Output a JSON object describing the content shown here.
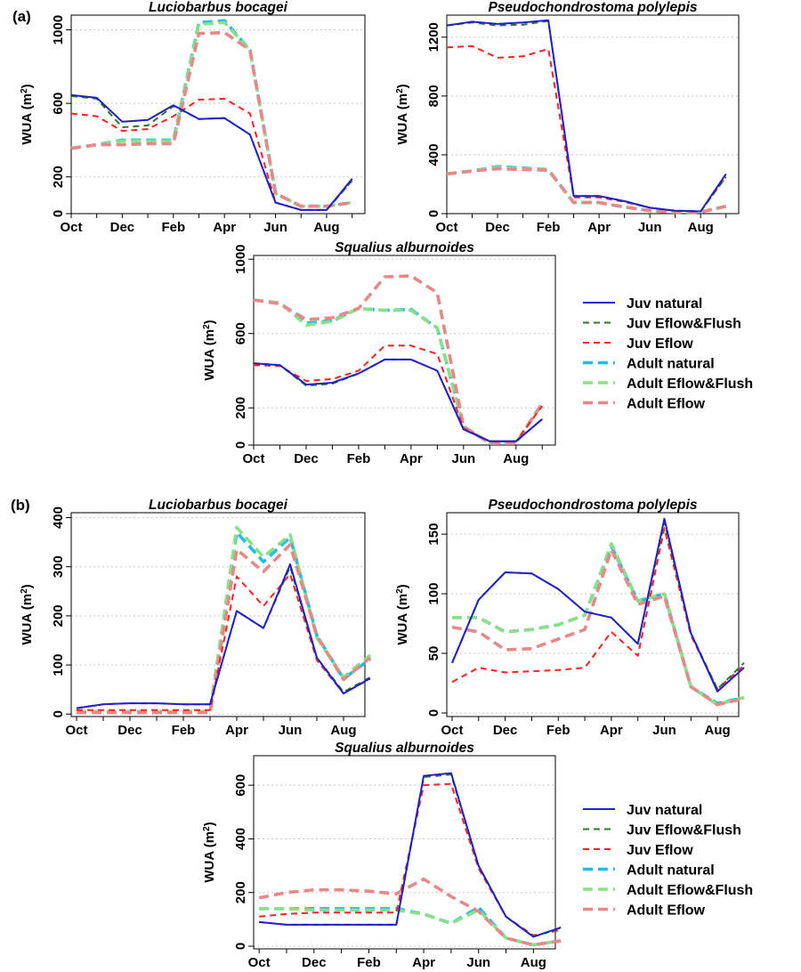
{
  "chart_data": [
    {
      "panel_label": "(a)",
      "type": "line",
      "title": "Luciobarbus bocagei",
      "ylabel": "WUA (m2)",
      "ylim": [
        0,
        1080
      ],
      "yticks": [
        0,
        200,
        600,
        1000
      ],
      "xlim": [
        0,
        11.5
      ],
      "xticks": [
        {
          "x": 0,
          "label": "Oct"
        },
        {
          "x": 2,
          "label": "Dec"
        },
        {
          "x": 4,
          "label": "Feb"
        },
        {
          "x": 6,
          "label": "Apr"
        },
        {
          "x": 8,
          "label": "Jun"
        },
        {
          "x": 10,
          "label": "Aug"
        }
      ],
      "grid": "horizontal-dotted",
      "x": [
        0,
        1,
        2,
        3,
        4,
        5,
        6,
        7,
        8,
        9,
        10,
        11
      ],
      "series": [
        {
          "name": "Juv natural",
          "color": "#1f1fcc",
          "style": "solid",
          "values": [
            645,
            630,
            500,
            510,
            590,
            515,
            520,
            430,
            60,
            20,
            20,
            190
          ]
        },
        {
          "name": "Juv Eflow&Flush",
          "color": "#2a7a2a",
          "style": "dash",
          "values": [
            640,
            625,
            470,
            480,
            585,
            515,
            520,
            430,
            60,
            20,
            20,
            180
          ]
        },
        {
          "name": "Juv Eflow",
          "color": "#ff2020",
          "style": "dash",
          "values": [
            545,
            530,
            450,
            460,
            530,
            620,
            625,
            545,
            60,
            20,
            20,
            180
          ]
        },
        {
          "name": "Adult natural",
          "color": "#22bbee",
          "style": "longdash",
          "values": [
            355,
            375,
            400,
            400,
            400,
            1040,
            1050,
            890,
            110,
            40,
            40,
            60
          ]
        },
        {
          "name": "Adult Eflow&Flush",
          "color": "#88e088",
          "style": "longdash",
          "values": [
            355,
            375,
            395,
            395,
            395,
            1030,
            1040,
            890,
            110,
            40,
            40,
            60
          ]
        },
        {
          "name": "Adult Eflow",
          "color": "#e88888",
          "style": "longdash",
          "values": [
            355,
            375,
            375,
            380,
            380,
            980,
            985,
            890,
            110,
            40,
            40,
            60
          ]
        }
      ]
    },
    {
      "panel_label": "",
      "type": "line",
      "title": "Pseudochondrostoma polylepis",
      "ylabel": "WUA (m2)",
      "ylim": [
        0,
        1350
      ],
      "yticks": [
        0,
        400,
        800,
        1200
      ],
      "xlim": [
        0,
        11.5
      ],
      "xticks": [
        {
          "x": 0,
          "label": "Oct"
        },
        {
          "x": 2,
          "label": "Dec"
        },
        {
          "x": 4,
          "label": "Feb"
        },
        {
          "x": 6,
          "label": "Apr"
        },
        {
          "x": 8,
          "label": "Jun"
        },
        {
          "x": 10,
          "label": "Aug"
        }
      ],
      "grid": "horizontal-dotted",
      "x": [
        0,
        1,
        2,
        3,
        4,
        5,
        6,
        7,
        8,
        9,
        10,
        11
      ],
      "series": [
        {
          "name": "Juv natural",
          "color": "#1f1fcc",
          "style": "solid",
          "values": [
            1280,
            1305,
            1290,
            1300,
            1315,
            120,
            120,
            85,
            40,
            20,
            15,
            270
          ]
        },
        {
          "name": "Juv Eflow&Flush",
          "color": "#2a7a2a",
          "style": "dash",
          "values": [
            1280,
            1300,
            1280,
            1285,
            1310,
            120,
            120,
            85,
            40,
            20,
            15,
            250
          ]
        },
        {
          "name": "Juv Eflow",
          "color": "#ff2020",
          "style": "dash",
          "values": [
            1130,
            1140,
            1060,
            1070,
            1120,
            110,
            110,
            80,
            40,
            20,
            15,
            250
          ]
        },
        {
          "name": "Adult natural",
          "color": "#22bbee",
          "style": "longdash",
          "values": [
            270,
            290,
            320,
            310,
            300,
            75,
            75,
            45,
            20,
            10,
            10,
            50
          ]
        },
        {
          "name": "Adult Eflow&Flush",
          "color": "#88e088",
          "style": "longdash",
          "values": [
            270,
            290,
            315,
            305,
            300,
            75,
            75,
            45,
            20,
            10,
            10,
            50
          ]
        },
        {
          "name": "Adult Eflow",
          "color": "#e88888",
          "style": "longdash",
          "values": [
            270,
            290,
            305,
            300,
            295,
            75,
            75,
            45,
            20,
            10,
            10,
            50
          ]
        }
      ]
    },
    {
      "panel_label": "",
      "type": "line",
      "title": "Squalius alburnoides",
      "ylabel": "WUA (m2)",
      "ylim": [
        0,
        1020
      ],
      "yticks": [
        0,
        200,
        600,
        1000
      ],
      "xlim": [
        0,
        11.5
      ],
      "xticks": [
        {
          "x": 0,
          "label": "Oct"
        },
        {
          "x": 2,
          "label": "Dec"
        },
        {
          "x": 4,
          "label": "Feb"
        },
        {
          "x": 6,
          "label": "Apr"
        },
        {
          "x": 8,
          "label": "Jun"
        },
        {
          "x": 10,
          "label": "Aug"
        }
      ],
      "grid": "horizontal-dotted",
      "x": [
        0,
        1,
        2,
        3,
        4,
        5,
        6,
        7,
        8,
        9,
        10,
        11
      ],
      "series": [
        {
          "name": "Juv natural",
          "color": "#1f1fcc",
          "style": "solid",
          "values": [
            440,
            430,
            325,
            335,
            385,
            460,
            460,
            400,
            85,
            20,
            20,
            140
          ]
        },
        {
          "name": "Juv Eflow&Flush",
          "color": "#2a7a2a",
          "style": "dash",
          "values": [
            440,
            430,
            320,
            330,
            385,
            460,
            460,
            400,
            85,
            20,
            20,
            140
          ]
        },
        {
          "name": "Juv Eflow",
          "color": "#ff2020",
          "style": "dash",
          "values": [
            430,
            425,
            345,
            355,
            400,
            535,
            535,
            490,
            90,
            20,
            20,
            210
          ]
        },
        {
          "name": "Adult natural",
          "color": "#22bbee",
          "style": "longdash",
          "values": [
            780,
            765,
            655,
            670,
            735,
            725,
            730,
            630,
            100,
            10,
            10,
            225
          ]
        },
        {
          "name": "Adult Eflow&Flush",
          "color": "#88e088",
          "style": "longdash",
          "values": [
            780,
            765,
            645,
            665,
            735,
            725,
            725,
            630,
            100,
            10,
            10,
            225
          ]
        },
        {
          "name": "Adult Eflow",
          "color": "#e88888",
          "style": "longdash",
          "values": [
            780,
            760,
            675,
            685,
            735,
            905,
            910,
            820,
            100,
            10,
            10,
            225
          ]
        }
      ]
    },
    {
      "panel_label": "(b)",
      "type": "line",
      "title": "Luciobarbus bocagei",
      "ylabel": "WUA (m2)",
      "ylim": [
        -5,
        410
      ],
      "yticks": [
        0,
        100,
        200,
        300,
        400
      ],
      "xlim": [
        -0.2,
        10.8
      ],
      "xticks": [
        {
          "x": 0,
          "label": "Oct"
        },
        {
          "x": 2,
          "label": "Dec"
        },
        {
          "x": 4,
          "label": "Feb"
        },
        {
          "x": 6,
          "label": "Apr"
        },
        {
          "x": 8,
          "label": "Jun"
        },
        {
          "x": 10,
          "label": "Aug"
        }
      ],
      "grid": "horizontal-dotted",
      "x": [
        0,
        1,
        2,
        3,
        4,
        5,
        6,
        7,
        8,
        9,
        10,
        11
      ],
      "series": [
        {
          "name": "Juv natural",
          "color": "#1f1fcc",
          "style": "solid",
          "values": [
            12,
            20,
            22,
            22,
            20,
            20,
            210,
            175,
            305,
            115,
            42,
            73
          ]
        },
        {
          "name": "Juv Eflow&Flush",
          "color": "#2a7a2a",
          "style": "dash",
          "values": [
            12,
            20,
            22,
            22,
            20,
            20,
            210,
            175,
            300,
            115,
            45,
            75
          ]
        },
        {
          "name": "Juv Eflow",
          "color": "#ff2020",
          "style": "dash",
          "values": [
            8,
            8,
            8,
            8,
            8,
            8,
            280,
            220,
            285,
            110,
            42,
            72
          ]
        },
        {
          "name": "Adult natural",
          "color": "#22bbee",
          "style": "longdash",
          "values": [
            5,
            5,
            5,
            5,
            5,
            5,
            370,
            310,
            360,
            160,
            72,
            112
          ]
        },
        {
          "name": "Adult Eflow&Flush",
          "color": "#88e088",
          "style": "longdash",
          "values": [
            5,
            5,
            5,
            5,
            5,
            5,
            380,
            320,
            365,
            155,
            75,
            120
          ]
        },
        {
          "name": "Adult Eflow",
          "color": "#e88888",
          "style": "longdash",
          "values": [
            3,
            3,
            3,
            3,
            3,
            3,
            335,
            290,
            345,
            160,
            70,
            115
          ]
        }
      ]
    },
    {
      "panel_label": "",
      "type": "line",
      "title": "Pseudochondrostoma polylepis",
      "ylabel": "WUA (m2)",
      "ylim": [
        -3,
        168
      ],
      "yticks": [
        0,
        50,
        100,
        150
      ],
      "xlim": [
        -0.2,
        10.8
      ],
      "xticks": [
        {
          "x": 0,
          "label": "Oct"
        },
        {
          "x": 2,
          "label": "Dec"
        },
        {
          "x": 4,
          "label": "Feb"
        },
        {
          "x": 6,
          "label": "Apr"
        },
        {
          "x": 8,
          "label": "Jun"
        },
        {
          "x": 10,
          "label": "Aug"
        }
      ],
      "grid": "horizontal-dotted",
      "x": [
        0,
        1,
        2,
        3,
        4,
        5,
        6,
        7,
        8,
        9,
        10,
        11
      ],
      "series": [
        {
          "name": "Juv natural",
          "color": "#1f1fcc",
          "style": "solid",
          "values": [
            42,
            95,
            118,
            117,
            104,
            85,
            80,
            58,
            163,
            67,
            18,
            38
          ]
        },
        {
          "name": "Juv Eflow&Flush",
          "color": "#2a7a2a",
          "style": "dash",
          "values": [
            42,
            95,
            118,
            117,
            104,
            85,
            80,
            58,
            160,
            67,
            20,
            42
          ]
        },
        {
          "name": "Juv Eflow",
          "color": "#ff2020",
          "style": "dash",
          "values": [
            26,
            38,
            34,
            35,
            36,
            38,
            68,
            48,
            155,
            65,
            20,
            40
          ]
        },
        {
          "name": "Adult natural",
          "color": "#22bbee",
          "style": "longdash",
          "values": [
            80,
            80,
            68,
            70,
            74,
            82,
            140,
            94,
            100,
            22,
            8,
            13
          ]
        },
        {
          "name": "Adult Eflow&Flush",
          "color": "#88e088",
          "style": "longdash",
          "values": [
            80,
            80,
            68,
            70,
            74,
            82,
            142,
            94,
            100,
            22,
            7,
            13
          ]
        },
        {
          "name": "Adult Eflow",
          "color": "#e88888",
          "style": "longdash",
          "values": [
            72,
            68,
            53,
            54,
            62,
            70,
            137,
            91,
            98,
            22,
            7,
            12
          ]
        }
      ]
    },
    {
      "panel_label": "",
      "type": "line",
      "title": "Squalius alburnoides",
      "ylabel": "WUA (m2)",
      "ylim": [
        -10,
        710
      ],
      "yticks": [
        0,
        200,
        400,
        600
      ],
      "xlim": [
        -0.2,
        10.8
      ],
      "xticks": [
        {
          "x": 0,
          "label": "Oct"
        },
        {
          "x": 2,
          "label": "Dec"
        },
        {
          "x": 4,
          "label": "Feb"
        },
        {
          "x": 6,
          "label": "Apr"
        },
        {
          "x": 8,
          "label": "Jun"
        },
        {
          "x": 10,
          "label": "Aug"
        }
      ],
      "grid": "horizontal-dotted",
      "x": [
        0,
        1,
        2,
        3,
        4,
        5,
        6,
        7,
        8,
        9,
        10,
        11
      ],
      "series": [
        {
          "name": "Juv natural",
          "color": "#1f1fcc",
          "style": "solid",
          "values": [
            90,
            80,
            80,
            80,
            80,
            80,
            635,
            645,
            300,
            110,
            35,
            70
          ]
        },
        {
          "name": "Juv Eflow&Flush",
          "color": "#2a7a2a",
          "style": "dash",
          "values": [
            90,
            80,
            80,
            80,
            80,
            80,
            630,
            640,
            300,
            110,
            35,
            68
          ]
        },
        {
          "name": "Juv Eflow",
          "color": "#ff2020",
          "style": "dash",
          "values": [
            110,
            120,
            125,
            125,
            125,
            125,
            600,
            605,
            290,
            110,
            40,
            60
          ]
        },
        {
          "name": "Adult natural",
          "color": "#22bbee",
          "style": "longdash",
          "values": [
            140,
            140,
            140,
            140,
            140,
            140,
            120,
            85,
            145,
            30,
            5,
            20
          ]
        },
        {
          "name": "Adult Eflow&Flush",
          "color": "#88e088",
          "style": "longdash",
          "values": [
            140,
            140,
            135,
            135,
            135,
            135,
            120,
            85,
            135,
            30,
            5,
            20
          ]
        },
        {
          "name": "Adult Eflow",
          "color": "#e88888",
          "style": "longdash",
          "values": [
            180,
            200,
            210,
            210,
            205,
            195,
            250,
            185,
            130,
            30,
            5,
            20
          ]
        }
      ]
    }
  ],
  "legend": {
    "placement": "right",
    "entries": [
      {
        "label": "Juv natural",
        "color": "#1f1fcc",
        "style": "solid"
      },
      {
        "label": "Juv Eflow&Flush",
        "color": "#2a7a2a",
        "style": "dash"
      },
      {
        "label": "Juv Eflow",
        "color": "#ff2020",
        "style": "dash"
      },
      {
        "label": "Adult natural",
        "color": "#22bbee",
        "style": "longdash"
      },
      {
        "label": "Adult Eflow&Flush",
        "color": "#88e088",
        "style": "longdash"
      },
      {
        "label": "Adult Eflow",
        "color": "#e88888",
        "style": "longdash"
      }
    ]
  }
}
